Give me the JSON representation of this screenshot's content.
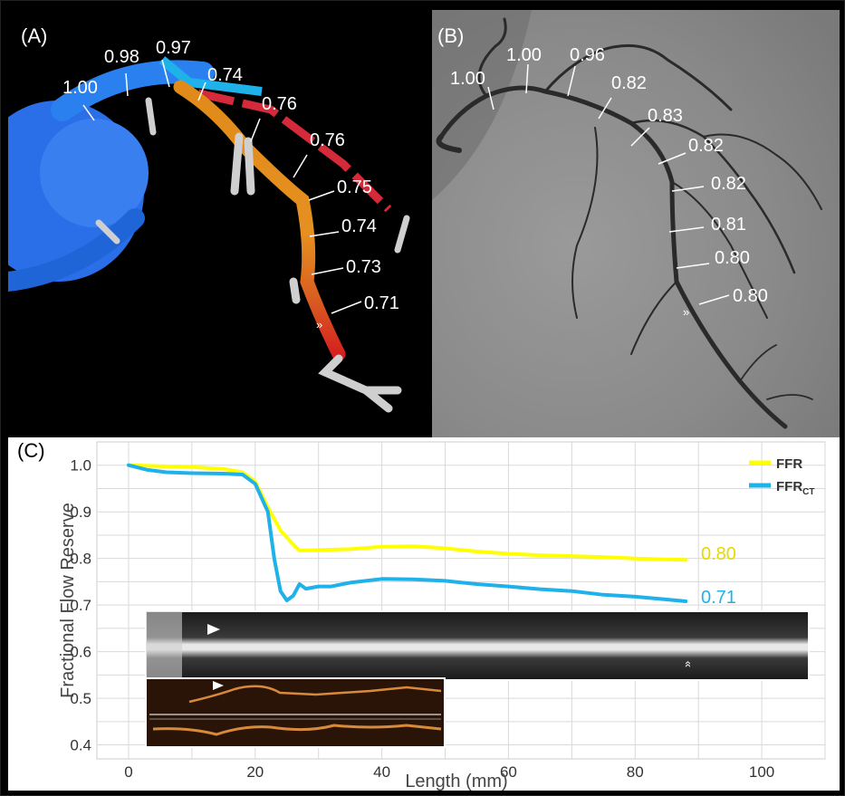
{
  "panel_a": {
    "label": "(A)",
    "annotations": [
      "1.00",
      "0.98",
      "0.97",
      "0.74",
      "0.76",
      "0.76",
      "0.75",
      "0.74",
      "0.73",
      "0.71"
    ]
  },
  "panel_b": {
    "label": "(B)",
    "annotations": [
      "1.00",
      "1.00",
      "0.96",
      "0.82",
      "0.83",
      "0.82",
      "0.82",
      "0.81",
      "0.80",
      "0.80"
    ]
  },
  "panel_c": {
    "label": "(C)",
    "end_labels": {
      "ffr": "0.80",
      "ffrct": "0.71"
    }
  },
  "colors": {
    "ffr": "#ffff00",
    "ffrct": "#1fb1e9"
  },
  "icons": [
    "arrowhead-icon",
    "double-chevron-icon"
  ],
  "chart_data": {
    "type": "line",
    "xlabel": "Length (mm)",
    "ylabel": "Fractional Flow Reserve",
    "xlim": [
      -5,
      110
    ],
    "ylim": [
      0.37,
      1.05
    ],
    "xticks": [
      0,
      20,
      40,
      60,
      80,
      100
    ],
    "yticks": [
      0.4,
      0.5,
      0.6,
      0.7,
      0.8,
      0.9,
      1.0
    ],
    "xtick_labels": [
      "0",
      "20",
      "40",
      "60",
      "80",
      "100"
    ],
    "ytick_labels": [
      "0.4",
      "0.5",
      "0.6",
      "0.7",
      "0.8",
      "0.9",
      "1.0"
    ],
    "grid": true,
    "legend_position": "top-right",
    "legend": [
      "FFR",
      "FFR",
      "CT"
    ],
    "series": [
      {
        "name": "FFR",
        "x": [
          0,
          5,
          10,
          15,
          18,
          20,
          22,
          24,
          26,
          27,
          30,
          35,
          40,
          45,
          50,
          55,
          60,
          65,
          70,
          75,
          80,
          85,
          88
        ],
        "y": [
          1.0,
          0.998,
          0.996,
          0.992,
          0.985,
          0.965,
          0.91,
          0.86,
          0.83,
          0.817,
          0.818,
          0.82,
          0.825,
          0.826,
          0.822,
          0.815,
          0.81,
          0.807,
          0.805,
          0.803,
          0.8,
          0.798,
          0.797
        ]
      },
      {
        "name": "FFRCT",
        "x": [
          0,
          3,
          6,
          10,
          15,
          18,
          20,
          22,
          23,
          24,
          25,
          26,
          27,
          28,
          30,
          32,
          35,
          40,
          45,
          50,
          55,
          60,
          65,
          70,
          75,
          80,
          85,
          88
        ],
        "y": [
          1.0,
          0.99,
          0.985,
          0.983,
          0.982,
          0.98,
          0.96,
          0.9,
          0.8,
          0.73,
          0.71,
          0.72,
          0.745,
          0.735,
          0.74,
          0.74,
          0.748,
          0.756,
          0.755,
          0.752,
          0.745,
          0.74,
          0.734,
          0.73,
          0.722,
          0.718,
          0.712,
          0.708
        ]
      }
    ]
  }
}
